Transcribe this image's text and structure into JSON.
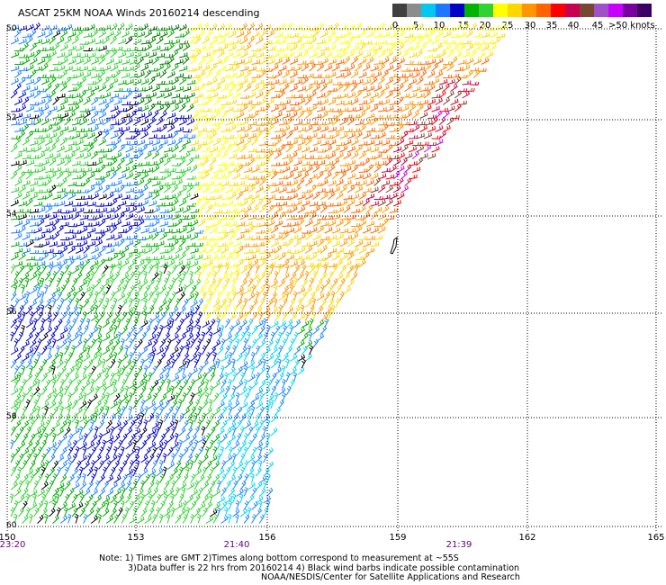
{
  "title": "ASCAT 25KM NOAA Winds 20160214 descending",
  "legend": {
    "labels": [
      "0",
      "5",
      "10",
      "15",
      "20",
      "25",
      "30",
      "35",
      "40",
      "45",
      ">50 knots"
    ],
    "colors": [
      "#404040",
      "#8c8c8c",
      "#00c8f0",
      "#1e78ff",
      "#0000c8",
      "#00b400",
      "#32d232",
      "#ffff00",
      "#ffd700",
      "#ff9600",
      "#ff6400",
      "#ff0000",
      "#c80050",
      "#784632",
      "#a050c8",
      "#c800ff",
      "#7800a0",
      "#3c0064"
    ]
  },
  "map": {
    "x_axis": {
      "ticks": [
        "150",
        "153",
        "156",
        "159",
        "162",
        "165"
      ]
    },
    "y_axis": {
      "ticks": [
        "50",
        "52",
        "54",
        "56",
        "58",
        "60"
      ]
    },
    "times": [
      "23:20",
      "21:40",
      "21:39"
    ]
  },
  "notes": {
    "line1": "Note: 1) Times are GMT 2)Times along bottom correspond to measurement at ~55S",
    "line2": "3)Data buffer is 22 hrs from 20160214 4) Black wind barbs indicate possible contamination",
    "line3": "NOAA/NESDIS/Center for Satellite Applications and Research"
  },
  "barb_colors": {
    "black": "#000000",
    "cyan": "#00d4f0",
    "blue": "#1e82ff",
    "navy": "#0000c0",
    "green": "#00aa00",
    "lightgreen": "#30d030",
    "darkgreen": "#007800",
    "yellow": "#ffff00",
    "gold": "#ffd700",
    "orange": "#ff9600",
    "darkorange": "#ff6400",
    "red": "#ff0000",
    "crimson": "#c8003c",
    "brown": "#7a4630",
    "magenta": "#c800ff"
  }
}
